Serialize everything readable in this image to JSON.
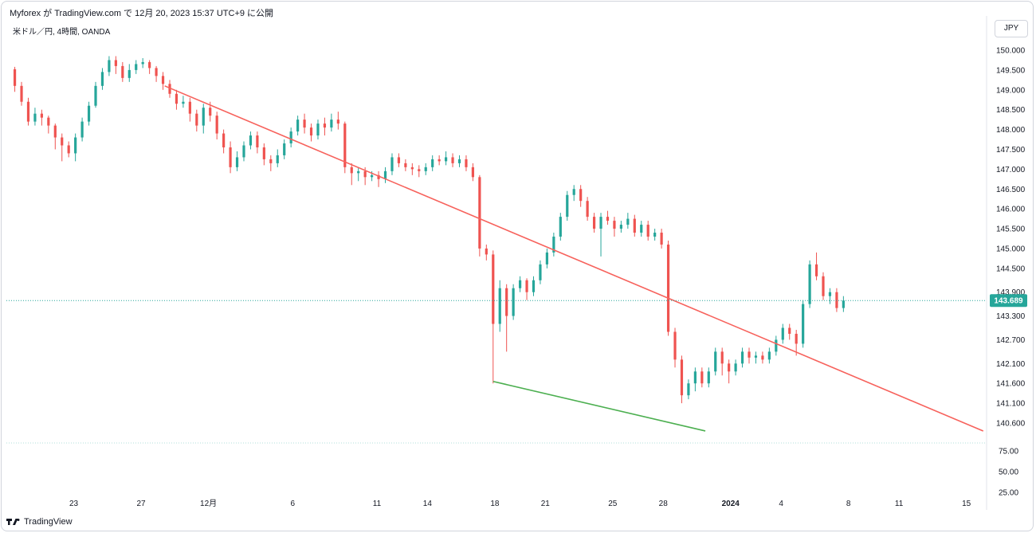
{
  "header": {
    "attribution": "Myforex が TradingView.com で 12月 20, 2023 15:37 UTC+9 に公開"
  },
  "symbol_legend": "米ドル／円, 4時間, OANDA",
  "currency_button": "JPY",
  "footer": {
    "brand": "TradingView"
  },
  "colors": {
    "up": "#26a69a",
    "down": "#ef5350",
    "resistance": "#f7625c",
    "support": "#4caf50",
    "price_tag": "#26a69a"
  },
  "chart_data": {
    "type": "candlestick",
    "title": "",
    "ylabel": "",
    "xlabel": "",
    "y_ticks": [
      "150.000",
      "149.500",
      "149.000",
      "148.500",
      "148.000",
      "147.500",
      "147.000",
      "146.500",
      "146.000",
      "145.500",
      "145.000",
      "144.500",
      "143.900",
      "143.300",
      "142.700",
      "142.100",
      "141.600",
      "141.100",
      "140.600"
    ],
    "y_tick_values": [
      150.0,
      149.5,
      149.0,
      148.5,
      148.0,
      147.5,
      147.0,
      146.5,
      146.0,
      145.5,
      145.0,
      144.5,
      143.9,
      143.3,
      142.7,
      142.1,
      141.6,
      141.1,
      140.6
    ],
    "indicator_ticks": [
      "75.00",
      "50.00",
      "25.00"
    ],
    "indicator_tick_values": [
      75,
      50,
      25
    ],
    "indicator_range": [
      25,
      75
    ],
    "x_ticks": [
      "23",
      "27",
      "12月",
      "6",
      "11",
      "14",
      "18",
      "21",
      "25",
      "28",
      "2024",
      "4",
      "8",
      "11",
      "15"
    ],
    "x_tick_days": [
      23,
      27,
      31,
      36,
      41,
      44,
      48,
      51,
      55,
      58,
      62,
      65,
      69,
      72,
      76
    ],
    "x_range_days": [
      19.0,
      77.2
    ],
    "last_price_label": "143.689",
    "last_price": 143.689,
    "candles": [
      [
        19.5,
        149.52,
        149.1,
        149.58,
        148.95
      ],
      [
        19.9,
        149.1,
        148.7,
        149.2,
        148.6
      ],
      [
        20.3,
        148.7,
        148.2,
        148.8,
        148.1
      ],
      [
        20.7,
        148.2,
        148.4,
        148.55,
        148.1
      ],
      [
        21.1,
        148.4,
        148.3,
        148.5,
        148.1
      ],
      [
        21.5,
        148.3,
        148.1,
        148.35,
        147.9
      ],
      [
        21.9,
        148.1,
        147.8,
        148.15,
        147.5
      ],
      [
        22.3,
        147.8,
        147.6,
        147.9,
        147.2
      ],
      [
        22.7,
        147.6,
        147.4,
        147.7,
        147.3
      ],
      [
        23.1,
        147.4,
        147.8,
        147.9,
        147.2
      ],
      [
        23.5,
        147.8,
        148.2,
        148.3,
        147.7
      ],
      [
        23.9,
        148.2,
        148.6,
        148.7,
        148.1
      ],
      [
        24.3,
        148.6,
        149.1,
        149.2,
        148.55
      ],
      [
        24.7,
        149.1,
        149.45,
        149.55,
        149.0
      ],
      [
        25.1,
        149.45,
        149.75,
        149.85,
        149.35
      ],
      [
        25.5,
        149.75,
        149.6,
        149.85,
        149.4
      ],
      [
        25.9,
        149.6,
        149.3,
        149.7,
        149.2
      ],
      [
        26.3,
        149.3,
        149.5,
        149.65,
        149.2
      ],
      [
        26.7,
        149.5,
        149.65,
        149.75,
        149.4
      ],
      [
        27.1,
        149.65,
        149.7,
        149.8,
        149.55
      ],
      [
        27.5,
        149.7,
        149.55,
        149.75,
        149.4
      ],
      [
        27.9,
        149.55,
        149.35,
        149.6,
        149.2
      ],
      [
        28.3,
        149.35,
        149.15,
        149.45,
        149.0
      ],
      [
        28.7,
        149.15,
        148.9,
        149.25,
        148.8
      ],
      [
        29.1,
        148.9,
        148.65,
        149.0,
        148.5
      ],
      [
        29.5,
        148.65,
        148.7,
        148.85,
        148.55
      ],
      [
        29.9,
        148.7,
        148.4,
        148.8,
        148.2
      ],
      [
        30.3,
        148.4,
        148.1,
        148.5,
        147.95
      ],
      [
        30.7,
        148.1,
        148.55,
        148.65,
        147.9
      ],
      [
        31.1,
        148.55,
        148.35,
        148.7,
        148.2
      ],
      [
        31.5,
        148.35,
        147.9,
        148.45,
        147.75
      ],
      [
        31.9,
        147.9,
        147.55,
        148.0,
        147.4
      ],
      [
        32.3,
        147.55,
        147.05,
        147.7,
        146.9
      ],
      [
        32.7,
        147.05,
        147.3,
        147.45,
        146.95
      ],
      [
        33.1,
        147.3,
        147.6,
        147.7,
        147.2
      ],
      [
        33.5,
        147.6,
        147.85,
        147.95,
        147.5
      ],
      [
        33.9,
        147.85,
        147.55,
        147.95,
        147.4
      ],
      [
        34.3,
        147.55,
        147.25,
        147.65,
        147.1
      ],
      [
        34.7,
        147.25,
        147.15,
        147.35,
        146.95
      ],
      [
        35.1,
        147.15,
        147.35,
        147.5,
        147.05
      ],
      [
        35.5,
        147.35,
        147.65,
        147.75,
        147.25
      ],
      [
        35.9,
        147.65,
        147.95,
        148.05,
        147.55
      ],
      [
        36.3,
        147.95,
        148.25,
        148.35,
        147.85
      ],
      [
        36.7,
        148.25,
        148.05,
        148.4,
        147.9
      ],
      [
        37.1,
        148.05,
        147.85,
        148.15,
        147.7
      ],
      [
        37.5,
        147.85,
        148.15,
        148.25,
        147.75
      ],
      [
        37.9,
        148.15,
        148.05,
        148.3,
        147.85
      ],
      [
        38.3,
        148.05,
        148.25,
        148.4,
        147.95
      ],
      [
        38.7,
        148.25,
        148.15,
        148.45,
        148.0
      ],
      [
        39.1,
        148.15,
        147.05,
        148.2,
        146.9
      ],
      [
        39.5,
        147.05,
        146.9,
        147.15,
        146.6
      ],
      [
        39.9,
        146.9,
        146.95,
        147.05,
        146.7
      ],
      [
        40.3,
        146.95,
        146.8,
        147.05,
        146.6
      ],
      [
        40.7,
        146.8,
        146.85,
        146.95,
        146.7
      ],
      [
        41.1,
        146.85,
        146.75,
        146.95,
        146.55
      ],
      [
        41.5,
        146.75,
        146.95,
        147.05,
        146.65
      ],
      [
        41.9,
        146.95,
        147.3,
        147.4,
        146.85
      ],
      [
        42.3,
        147.3,
        147.15,
        147.4,
        147.05
      ],
      [
        42.7,
        147.15,
        147.05,
        147.25,
        146.95
      ],
      [
        43.1,
        147.05,
        147.0,
        147.15,
        146.85
      ],
      [
        43.5,
        147.0,
        146.95,
        147.1,
        146.8
      ],
      [
        43.9,
        146.95,
        147.05,
        147.15,
        146.85
      ],
      [
        44.3,
        147.05,
        147.25,
        147.35,
        146.95
      ],
      [
        44.7,
        147.25,
        147.2,
        147.35,
        147.1
      ],
      [
        45.1,
        147.2,
        147.3,
        147.45,
        147.1
      ],
      [
        45.5,
        147.3,
        147.15,
        147.4,
        147.05
      ],
      [
        45.9,
        147.15,
        147.25,
        147.35,
        147.05
      ],
      [
        46.3,
        147.25,
        147.05,
        147.35,
        146.95
      ],
      [
        46.7,
        147.05,
        146.8,
        147.15,
        146.7
      ],
      [
        47.1,
        146.8,
        145.0,
        146.85,
        144.8
      ],
      [
        47.5,
        145.0,
        144.85,
        145.1,
        144.7
      ],
      [
        47.9,
        144.85,
        143.1,
        144.95,
        141.6
      ],
      [
        48.3,
        143.1,
        144.0,
        144.2,
        142.9
      ],
      [
        48.7,
        144.0,
        143.3,
        144.1,
        142.4
      ],
      [
        49.1,
        143.3,
        144.0,
        144.1,
        143.2
      ],
      [
        49.5,
        144.0,
        144.2,
        144.3,
        143.9
      ],
      [
        49.9,
        144.2,
        143.9,
        144.25,
        143.7
      ],
      [
        50.3,
        143.9,
        144.2,
        144.3,
        143.8
      ],
      [
        50.7,
        144.2,
        144.6,
        144.7,
        144.1
      ],
      [
        51.1,
        144.6,
        144.9,
        145.0,
        144.5
      ],
      [
        51.5,
        144.9,
        145.3,
        145.4,
        144.8
      ],
      [
        51.9,
        145.3,
        145.8,
        145.9,
        145.2
      ],
      [
        52.3,
        145.8,
        146.35,
        146.45,
        145.7
      ],
      [
        52.7,
        146.35,
        146.5,
        146.6,
        146.2
      ],
      [
        53.1,
        146.5,
        146.2,
        146.6,
        146.05
      ],
      [
        53.5,
        146.2,
        145.8,
        146.3,
        145.7
      ],
      [
        53.9,
        145.8,
        145.5,
        145.9,
        145.4
      ],
      [
        54.3,
        145.5,
        145.8,
        145.9,
        144.8
      ],
      [
        54.7,
        145.8,
        145.7,
        145.95,
        145.6
      ],
      [
        55.1,
        145.7,
        145.5,
        145.8,
        145.3
      ],
      [
        55.5,
        145.5,
        145.6,
        145.7,
        145.4
      ],
      [
        55.9,
        145.6,
        145.75,
        145.9,
        145.5
      ],
      [
        56.3,
        145.75,
        145.4,
        145.85,
        145.3
      ],
      [
        56.7,
        145.4,
        145.6,
        145.7,
        145.3
      ],
      [
        57.1,
        145.6,
        145.3,
        145.7,
        145.2
      ],
      [
        57.5,
        145.3,
        145.4,
        145.5,
        145.2
      ],
      [
        57.9,
        145.4,
        145.1,
        145.5,
        145.0
      ],
      [
        58.3,
        145.1,
        142.9,
        145.2,
        142.8
      ],
      [
        58.7,
        142.9,
        142.2,
        143.0,
        142.0
      ],
      [
        59.1,
        142.2,
        141.3,
        142.3,
        141.1
      ],
      [
        59.5,
        141.3,
        141.6,
        141.7,
        141.2
      ],
      [
        59.9,
        141.6,
        141.9,
        142.0,
        141.4
      ],
      [
        60.3,
        141.9,
        141.6,
        142.0,
        141.5
      ],
      [
        60.7,
        141.6,
        141.9,
        142.0,
        141.5
      ],
      [
        61.1,
        141.9,
        142.4,
        142.5,
        141.8
      ],
      [
        61.5,
        142.4,
        142.1,
        142.5,
        141.8
      ],
      [
        61.9,
        142.1,
        141.9,
        142.2,
        141.6
      ],
      [
        62.3,
        141.9,
        142.1,
        142.2,
        141.8
      ],
      [
        62.7,
        142.1,
        142.4,
        142.5,
        142.0
      ],
      [
        63.1,
        142.4,
        142.25,
        142.5,
        142.1
      ],
      [
        63.5,
        142.25,
        142.3,
        142.4,
        142.1
      ],
      [
        63.9,
        142.3,
        142.2,
        142.4,
        142.1
      ],
      [
        64.3,
        142.2,
        142.4,
        142.5,
        142.1
      ],
      [
        64.7,
        142.4,
        142.7,
        142.8,
        142.3
      ],
      [
        65.1,
        142.7,
        143.0,
        143.1,
        142.6
      ],
      [
        65.5,
        143.0,
        142.85,
        143.1,
        142.7
      ],
      [
        65.9,
        142.85,
        142.6,
        142.95,
        142.3
      ],
      [
        66.3,
        142.6,
        143.6,
        143.7,
        142.5
      ],
      [
        66.7,
        143.6,
        144.6,
        144.7,
        143.5
      ],
      [
        67.1,
        144.6,
        144.3,
        144.9,
        144.2
      ],
      [
        67.5,
        144.3,
        143.8,
        144.4,
        143.7
      ],
      [
        67.9,
        143.8,
        143.9,
        144.0,
        143.6
      ],
      [
        68.3,
        143.9,
        143.5,
        144.0,
        143.4
      ],
      [
        68.7,
        143.5,
        143.69,
        143.8,
        143.4
      ]
    ],
    "resistance_line": {
      "from": [
        28.4,
        149.1
      ],
      "to": [
        77.0,
        140.4
      ],
      "label": ""
    },
    "support_line": {
      "from": [
        47.9,
        141.65
      ],
      "to": [
        60.5,
        140.4
      ],
      "label": ""
    }
  }
}
